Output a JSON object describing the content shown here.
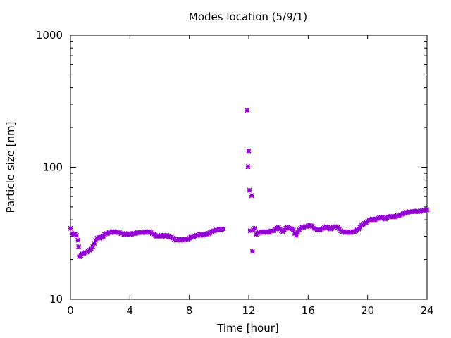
{
  "chart_data": {
    "type": "scatter",
    "title": "Modes location (5/9/1)",
    "xlabel": "Time [hour]",
    "ylabel": "Particle size [nm]",
    "xlim": [
      0,
      24
    ],
    "ylim": [
      10,
      1000
    ],
    "y_scale": "log",
    "x_ticks": [
      0,
      4,
      8,
      12,
      16,
      20,
      24
    ],
    "y_ticks": [
      10,
      100,
      1000
    ],
    "grid": false,
    "marker_color": "#9400d3",
    "series": [
      {
        "values": [
          [
            0.0,
            34.5
          ],
          [
            0.1,
            31.5
          ],
          [
            0.2,
            31.0
          ],
          [
            0.3,
            31.0
          ],
          [
            0.4,
            30.5
          ],
          [
            0.5,
            28.0
          ],
          [
            0.55,
            25.0
          ],
          [
            0.6,
            21.0
          ],
          [
            0.7,
            21.3
          ],
          [
            0.8,
            22.0
          ],
          [
            0.9,
            22.3
          ],
          [
            1.0,
            22.5
          ],
          [
            1.1,
            22.8
          ],
          [
            1.2,
            23.0
          ],
          [
            1.3,
            23.5
          ],
          [
            1.4,
            24.0
          ],
          [
            1.5,
            25.0
          ],
          [
            1.6,
            26.5
          ],
          [
            1.7,
            28.0
          ],
          [
            1.8,
            29.0
          ],
          [
            1.9,
            29.5
          ],
          [
            2.0,
            29.0
          ],
          [
            2.1,
            29.5
          ],
          [
            2.2,
            30.0
          ],
          [
            2.3,
            31.0
          ],
          [
            2.4,
            31.5
          ],
          [
            2.5,
            31.5
          ],
          [
            2.6,
            32.0
          ],
          [
            2.7,
            32.0
          ],
          [
            2.8,
            32.5
          ],
          [
            2.9,
            32.5
          ],
          [
            3.0,
            32.0
          ],
          [
            3.1,
            32.5
          ],
          [
            3.2,
            32.0
          ],
          [
            3.3,
            32.0
          ],
          [
            3.4,
            31.5
          ],
          [
            3.5,
            31.5
          ],
          [
            3.6,
            31.0
          ],
          [
            3.7,
            31.0
          ],
          [
            3.8,
            31.0
          ],
          [
            3.9,
            31.5
          ],
          [
            4.0,
            31.0
          ],
          [
            4.1,
            31.0
          ],
          [
            4.2,
            31.5
          ],
          [
            4.3,
            31.5
          ],
          [
            4.4,
            31.5
          ],
          [
            4.5,
            32.0
          ],
          [
            4.6,
            32.0
          ],
          [
            4.7,
            32.0
          ],
          [
            4.8,
            32.0
          ],
          [
            4.9,
            32.0
          ],
          [
            5.0,
            32.5
          ],
          [
            5.1,
            32.0
          ],
          [
            5.2,
            32.5
          ],
          [
            5.3,
            32.5
          ],
          [
            5.4,
            32.0
          ],
          [
            5.5,
            31.5
          ],
          [
            5.6,
            31.0
          ],
          [
            5.7,
            30.5
          ],
          [
            5.8,
            30.0
          ],
          [
            5.9,
            30.0
          ],
          [
            6.0,
            30.0
          ],
          [
            6.1,
            30.5
          ],
          [
            6.2,
            30.0
          ],
          [
            6.3,
            30.5
          ],
          [
            6.4,
            30.0
          ],
          [
            6.5,
            30.5
          ],
          [
            6.6,
            30.0
          ],
          [
            6.7,
            29.5
          ],
          [
            6.8,
            29.5
          ],
          [
            6.9,
            29.0
          ],
          [
            7.0,
            28.5
          ],
          [
            7.1,
            28.0
          ],
          [
            7.2,
            28.0
          ],
          [
            7.3,
            28.5
          ],
          [
            7.4,
            28.0
          ],
          [
            7.5,
            28.5
          ],
          [
            7.6,
            28.0
          ],
          [
            7.7,
            28.5
          ],
          [
            7.8,
            28.5
          ],
          [
            7.9,
            28.5
          ],
          [
            8.0,
            29.0
          ],
          [
            8.1,
            29.5
          ],
          [
            8.2,
            29.5
          ],
          [
            8.3,
            29.5
          ],
          [
            8.4,
            30.0
          ],
          [
            8.5,
            30.5
          ],
          [
            8.6,
            30.5
          ],
          [
            8.7,
            31.0
          ],
          [
            8.8,
            31.0
          ],
          [
            8.9,
            30.5
          ],
          [
            9.0,
            31.0
          ],
          [
            9.1,
            31.5
          ],
          [
            9.2,
            31.0
          ],
          [
            9.3,
            31.5
          ],
          [
            9.4,
            32.0
          ],
          [
            9.5,
            32.5
          ],
          [
            9.6,
            33.0
          ],
          [
            9.7,
            33.0
          ],
          [
            9.8,
            33.5
          ],
          [
            9.9,
            33.5
          ],
          [
            10.0,
            34.0
          ],
          [
            10.1,
            33.5
          ],
          [
            10.2,
            34.0
          ],
          [
            10.3,
            34.0
          ],
          [
            11.9,
            270
          ],
          [
            11.95,
            101
          ],
          [
            12.0,
            133
          ],
          [
            12.05,
            67
          ],
          [
            12.1,
            33
          ],
          [
            12.2,
            61
          ],
          [
            12.25,
            23
          ],
          [
            12.3,
            33.5
          ],
          [
            12.4,
            34.5
          ],
          [
            12.5,
            31.0
          ],
          [
            12.6,
            31.5
          ],
          [
            12.7,
            32.0
          ],
          [
            12.8,
            32.5
          ],
          [
            12.9,
            32.5
          ],
          [
            13.0,
            32.0
          ],
          [
            13.1,
            32.5
          ],
          [
            13.2,
            32.5
          ],
          [
            13.3,
            32.5
          ],
          [
            13.4,
            32.0
          ],
          [
            13.5,
            33.0
          ],
          [
            13.6,
            33.0
          ],
          [
            13.7,
            33.0
          ],
          [
            13.8,
            34.0
          ],
          [
            13.9,
            34.5
          ],
          [
            14.0,
            35.0
          ],
          [
            14.1,
            34.0
          ],
          [
            14.2,
            33.0
          ],
          [
            14.3,
            32.5
          ],
          [
            14.4,
            33.5
          ],
          [
            14.5,
            34.5
          ],
          [
            14.6,
            35.0
          ],
          [
            14.7,
            34.5
          ],
          [
            14.8,
            34.5
          ],
          [
            14.9,
            34.0
          ],
          [
            15.0,
            33.5
          ],
          [
            15.1,
            31.5
          ],
          [
            15.2,
            30.5
          ],
          [
            15.3,
            32.0
          ],
          [
            15.4,
            33.5
          ],
          [
            15.5,
            34.5
          ],
          [
            15.6,
            35.0
          ],
          [
            15.7,
            35.0
          ],
          [
            15.8,
            35.5
          ],
          [
            15.9,
            35.5
          ],
          [
            16.0,
            36.0
          ],
          [
            16.1,
            36.5
          ],
          [
            16.2,
            36.0
          ],
          [
            16.3,
            35.5
          ],
          [
            16.4,
            34.5
          ],
          [
            16.5,
            34.0
          ],
          [
            16.6,
            33.5
          ],
          [
            16.7,
            33.5
          ],
          [
            16.8,
            33.5
          ],
          [
            16.9,
            34.0
          ],
          [
            17.0,
            34.5
          ],
          [
            17.1,
            35.0
          ],
          [
            17.2,
            35.5
          ],
          [
            17.3,
            35.0
          ],
          [
            17.4,
            34.5
          ],
          [
            17.5,
            34.0
          ],
          [
            17.6,
            34.5
          ],
          [
            17.7,
            35.0
          ],
          [
            17.8,
            35.5
          ],
          [
            17.9,
            35.5
          ],
          [
            18.0,
            35.0
          ],
          [
            18.1,
            34.0
          ],
          [
            18.2,
            33.0
          ],
          [
            18.3,
            32.5
          ],
          [
            18.4,
            32.5
          ],
          [
            18.5,
            32.0
          ],
          [
            18.6,
            32.0
          ],
          [
            18.7,
            32.5
          ],
          [
            18.8,
            32.0
          ],
          [
            18.9,
            32.0
          ],
          [
            19.0,
            32.5
          ],
          [
            19.1,
            32.5
          ],
          [
            19.2,
            33.0
          ],
          [
            19.3,
            33.5
          ],
          [
            19.4,
            34.0
          ],
          [
            19.5,
            35.0
          ],
          [
            19.6,
            36.5
          ],
          [
            19.7,
            37.0
          ],
          [
            19.8,
            37.5
          ],
          [
            19.9,
            38.0
          ],
          [
            20.0,
            39.0
          ],
          [
            20.1,
            40.0
          ],
          [
            20.2,
            40.0
          ],
          [
            20.3,
            40.5
          ],
          [
            20.4,
            40.0
          ],
          [
            20.5,
            40.0
          ],
          [
            20.6,
            40.5
          ],
          [
            20.7,
            41.0
          ],
          [
            20.8,
            41.5
          ],
          [
            20.9,
            41.5
          ],
          [
            21.0,
            42.0
          ],
          [
            21.1,
            41.0
          ],
          [
            21.2,
            40.5
          ],
          [
            21.3,
            41.5
          ],
          [
            21.4,
            42.0
          ],
          [
            21.5,
            42.5
          ],
          [
            21.6,
            42.5
          ],
          [
            21.7,
            42.0
          ],
          [
            21.8,
            42.0
          ],
          [
            21.9,
            42.5
          ],
          [
            22.0,
            43.0
          ],
          [
            22.1,
            43.0
          ],
          [
            22.2,
            43.5
          ],
          [
            22.3,
            44.0
          ],
          [
            22.4,
            44.5
          ],
          [
            22.5,
            45.0
          ],
          [
            22.6,
            45.5
          ],
          [
            22.7,
            45.5
          ],
          [
            22.8,
            46.0
          ],
          [
            22.9,
            46.0
          ],
          [
            23.0,
            46.0
          ],
          [
            23.1,
            46.5
          ],
          [
            23.2,
            46.0
          ],
          [
            23.3,
            46.5
          ],
          [
            23.4,
            46.5
          ],
          [
            23.5,
            46.0
          ],
          [
            23.6,
            46.5
          ],
          [
            23.7,
            47.0
          ],
          [
            23.8,
            47.0
          ],
          [
            23.9,
            47.5
          ],
          [
            24.0,
            47.5
          ]
        ]
      }
    ]
  }
}
